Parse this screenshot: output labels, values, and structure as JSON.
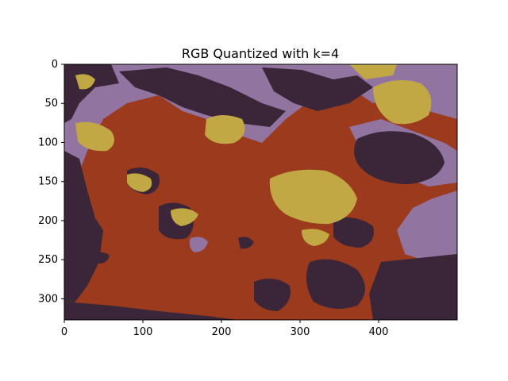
{
  "figure": {
    "title": "RGB Quantized with k=4",
    "image_description": "Quantized photo",
    "image_width": 500,
    "image_height": 327,
    "palette": [
      {
        "name": "dark-plum",
        "color": "#3a2638"
      },
      {
        "name": "rust-red",
        "color": "#9b3a1c"
      },
      {
        "name": "mustard",
        "color": "#c2a844"
      },
      {
        "name": "lavender",
        "color": "#9274a1"
      }
    ],
    "x_axis": {
      "ticks": [
        {
          "value": 0,
          "label": "0"
        },
        {
          "value": 100,
          "label": "100"
        },
        {
          "value": 200,
          "label": "200"
        },
        {
          "value": 300,
          "label": "300"
        },
        {
          "value": 400,
          "label": "400"
        }
      ]
    },
    "y_axis": {
      "ticks": [
        {
          "value": 0,
          "label": "0"
        },
        {
          "value": 50,
          "label": "50"
        },
        {
          "value": 100,
          "label": "100"
        },
        {
          "value": 150,
          "label": "150"
        },
        {
          "value": 200,
          "label": "200"
        },
        {
          "value": 250,
          "label": "250"
        },
        {
          "value": 300,
          "label": "300"
        }
      ]
    }
  }
}
